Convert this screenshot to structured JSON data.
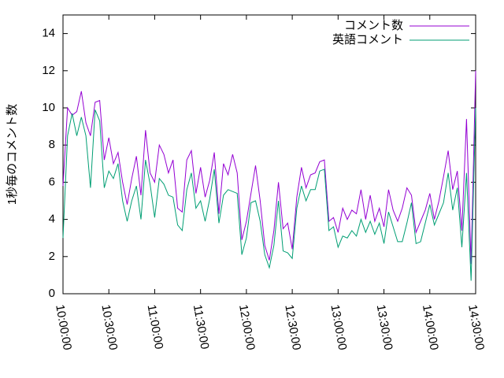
{
  "chart_data": {
    "type": "line",
    "ylabel": "1秒毎のコメント数",
    "x": [
      "10:00:00",
      "10:03:00",
      "10:06:00",
      "10:09:00",
      "10:12:00",
      "10:15:00",
      "10:18:00",
      "10:21:00",
      "10:24:00",
      "10:27:00",
      "10:30:00",
      "10:33:00",
      "10:36:00",
      "10:39:00",
      "10:42:00",
      "10:45:00",
      "10:48:00",
      "10:51:00",
      "10:54:00",
      "10:57:00",
      "11:00:00",
      "11:03:00",
      "11:06:00",
      "11:09:00",
      "11:12:00",
      "11:15:00",
      "11:18:00",
      "11:21:00",
      "11:24:00",
      "11:27:00",
      "11:30:00",
      "11:33:00",
      "11:36:00",
      "11:39:00",
      "11:42:00",
      "11:45:00",
      "11:48:00",
      "11:51:00",
      "11:54:00",
      "11:57:00",
      "12:00:00",
      "12:03:00",
      "12:06:00",
      "12:09:00",
      "12:12:00",
      "12:15:00",
      "12:18:00",
      "12:21:00",
      "12:24:00",
      "12:27:00",
      "12:30:00",
      "12:33:00",
      "12:36:00",
      "12:39:00",
      "12:42:00",
      "12:45:00",
      "12:48:00",
      "12:51:00",
      "12:54:00",
      "12:57:00",
      "13:00:00",
      "13:03:00",
      "13:06:00",
      "13:09:00",
      "13:12:00",
      "13:15:00",
      "13:18:00",
      "13:21:00",
      "13:24:00",
      "13:27:00",
      "13:30:00",
      "13:33:00",
      "13:36:00",
      "13:39:00",
      "13:42:00",
      "13:45:00",
      "13:48:00",
      "13:51:00",
      "13:54:00",
      "13:57:00",
      "14:00:00",
      "14:03:00",
      "14:06:00",
      "14:09:00",
      "14:12:00",
      "14:15:00",
      "14:18:00",
      "14:21:00",
      "14:24:00",
      "14:27:00",
      "14:30:00"
    ],
    "series": [
      {
        "name": "コメント数",
        "color": "#9400d3",
        "values": [
          5.8,
          10,
          9.6,
          9.8,
          10.9,
          9.2,
          8.5,
          10.3,
          10.4,
          7.2,
          8.4,
          7,
          7.6,
          6,
          4.8,
          6.2,
          7.4,
          5.3,
          8.8,
          6.5,
          6,
          8,
          7.5,
          6.5,
          7.2,
          4.6,
          4.4,
          7.2,
          7.7,
          5.4,
          6.8,
          5.2,
          6.1,
          7.6,
          4.3,
          7,
          6.4,
          7.5,
          6.5,
          2.9,
          3.9,
          5.4,
          6.9,
          5,
          2.6,
          1.8,
          3.4,
          6,
          3.5,
          3.8,
          2.4,
          5.2,
          6.8,
          5.7,
          6.4,
          6.5,
          7.1,
          7.2,
          3.9,
          4.1,
          3.3,
          4.6,
          4,
          4.5,
          4.3,
          5.6,
          4,
          5.3,
          3.9,
          4.6,
          3.6,
          5.6,
          4.5,
          3.9,
          4.6,
          5.7,
          5.3,
          3.3,
          3.9,
          4.5,
          5.4,
          4,
          5,
          6.3,
          7.7,
          5.6,
          6.6,
          3.4,
          9.4,
          1.6,
          12
        ]
      },
      {
        "name": "英語コメント",
        "color": "#009e73",
        "values": [
          3,
          8.5,
          9.7,
          8.5,
          9.5,
          8.5,
          5.7,
          9.9,
          9.3,
          5.7,
          6.6,
          6.2,
          7,
          5,
          3.9,
          5,
          5.8,
          4,
          7.2,
          5.9,
          4.1,
          6.2,
          5.9,
          5.3,
          5.2,
          3.7,
          3.4,
          5.6,
          6.5,
          4.6,
          5,
          3.9,
          5.1,
          6.7,
          3.8,
          5.3,
          5.6,
          5.5,
          5.4,
          2.1,
          3,
          4.9,
          5,
          3.9,
          2.1,
          1.4,
          2.6,
          5,
          2.3,
          2.2,
          1.9,
          4.6,
          5.8,
          5,
          5.6,
          5.6,
          6.6,
          6.7,
          3.4,
          3.6,
          2.5,
          3.1,
          3,
          3.4,
          3.1,
          4,
          3.3,
          3.9,
          3.2,
          3.8,
          2.7,
          4.4,
          3.6,
          2.8,
          2.8,
          3.8,
          4.9,
          2.7,
          2.8,
          3.8,
          4.8,
          3.7,
          4.3,
          4.9,
          6.5,
          4.5,
          5.7,
          2.5,
          6.5,
          0.7,
          10
        ]
      }
    ],
    "xlim": [
      "10:00:00",
      "14:30:00"
    ],
    "xticks": [
      "10:00:00",
      "10:30:00",
      "11:00:00",
      "11:30:00",
      "12:00:00",
      "12:30:00",
      "13:00:00",
      "13:30:00",
      "14:00:00",
      "14:30:00"
    ],
    "ylim": [
      0,
      15
    ],
    "yticks": [
      0,
      2,
      4,
      6,
      8,
      10,
      12,
      14
    ],
    "legend": "top-right"
  }
}
